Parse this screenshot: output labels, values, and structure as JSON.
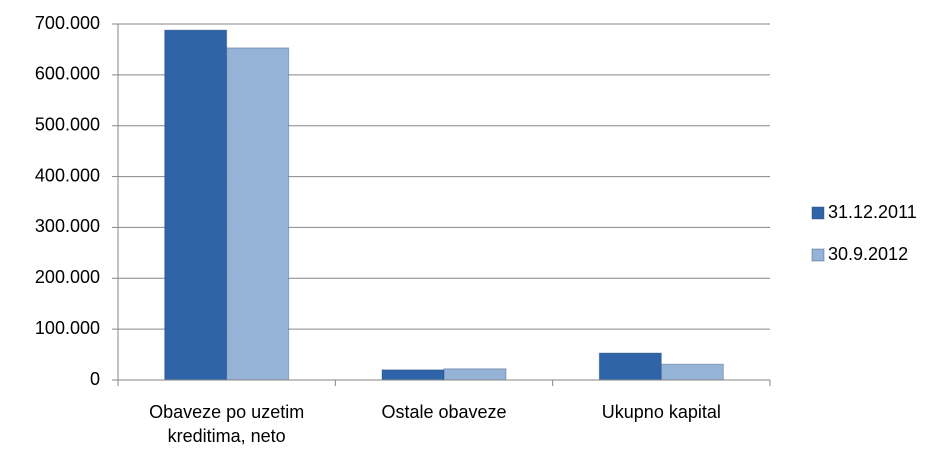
{
  "chart_data": {
    "type": "bar",
    "categories": [
      "Obaveze po uzetim kreditima, neto",
      "Ostale obaveze",
      "Ukupno kapital"
    ],
    "series": [
      {
        "name": "31.12.2011",
        "color": "#2f65a8",
        "values": [
          688000,
          20000,
          53000
        ]
      },
      {
        "name": "30.9.2012",
        "color": "#95b3d7",
        "values": [
          653000,
          22000,
          31000
        ]
      }
    ],
    "ylim": [
      0,
      700000
    ],
    "yticks": [
      0,
      {
        "value": 100000,
        "label": "100.000"
      },
      {
        "value": 200000,
        "label": "200.000"
      },
      {
        "value": 300000,
        "label": "300.000"
      },
      {
        "value": 400000,
        "label": "400.000"
      },
      {
        "value": 500000,
        "label": "500.000"
      },
      {
        "value": 600000,
        "label": "600.000"
      },
      {
        "value": 700000,
        "label": "700.000"
      }
    ],
    "grid": true,
    "legend": "right"
  }
}
